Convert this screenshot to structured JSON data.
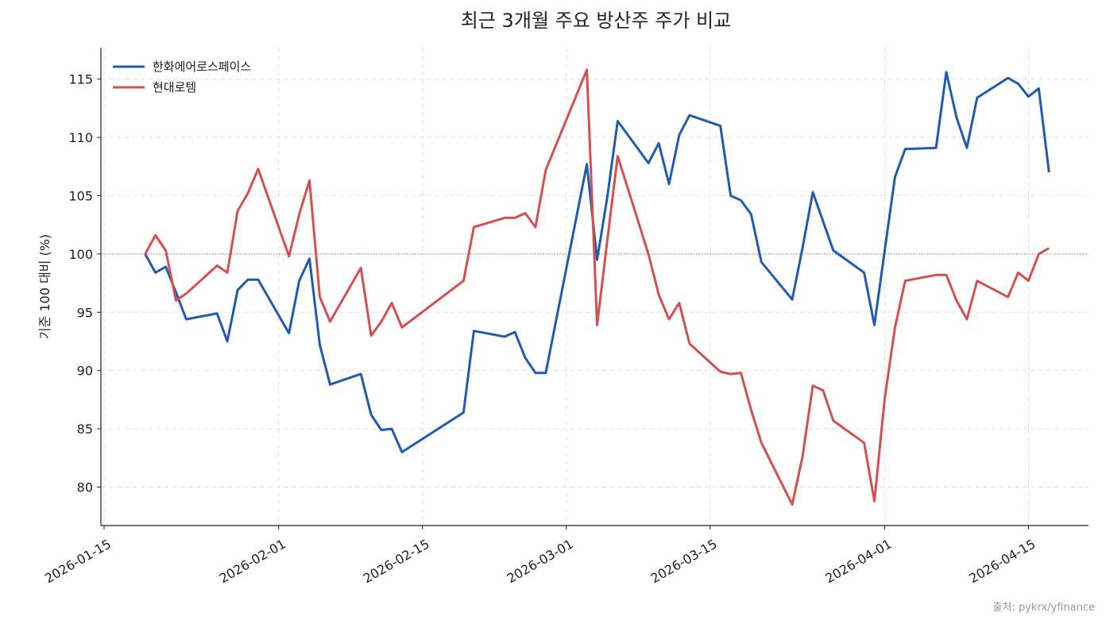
{
  "chart_data": {
    "type": "line",
    "title": "최근 3개월 주요 방산주 주가 비교",
    "y_label": "기준 100 대비 (%)",
    "source": "출처: pykrx/yfinance",
    "x": [
      "2026-01-19",
      "2026-01-20",
      "2026-01-21",
      "2026-01-22",
      "2026-01-23",
      "2026-01-26",
      "2026-01-27",
      "2026-01-28",
      "2026-01-29",
      "2026-01-30",
      "2026-02-02",
      "2026-02-03",
      "2026-02-04",
      "2026-02-05",
      "2026-02-06",
      "2026-02-09",
      "2026-02-10",
      "2026-02-11",
      "2026-02-12",
      "2026-02-13",
      "2026-02-19",
      "2026-02-20",
      "2026-02-23",
      "2026-02-24",
      "2026-02-25",
      "2026-02-26",
      "2026-02-27",
      "2026-03-03",
      "2026-03-04",
      "2026-03-05",
      "2026-03-06",
      "2026-03-09",
      "2026-03-10",
      "2026-03-11",
      "2026-03-12",
      "2026-03-13",
      "2026-03-16",
      "2026-03-17",
      "2026-03-18",
      "2026-03-19",
      "2026-03-20",
      "2026-03-23",
      "2026-03-24",
      "2026-03-25",
      "2026-03-26",
      "2026-03-27",
      "2026-03-30",
      "2026-03-31",
      "2026-04-01",
      "2026-04-02",
      "2026-04-03",
      "2026-04-06",
      "2026-04-07",
      "2026-04-08",
      "2026-04-09",
      "2026-04-10",
      "2026-04-13",
      "2026-04-14",
      "2026-04-15",
      "2026-04-16",
      "2026-04-17"
    ],
    "series": [
      {
        "name": "한화에어로스페이스",
        "color": "#1f5bb0",
        "values": [
          100,
          98.4,
          98.9,
          96.7,
          94.4,
          94.9,
          92.5,
          96.9,
          97.8,
          97.8,
          93.2,
          97.7,
          99.6,
          92.2,
          88.8,
          89.7,
          86.2,
          84.9,
          85.0,
          83.0,
          86.4,
          93.4,
          92.9,
          93.3,
          91.1,
          89.8,
          89.8,
          107.7,
          99.5,
          104.9,
          111.4,
          107.8,
          109.5,
          106.0,
          110.2,
          111.9,
          111.0,
          105.0,
          104.6,
          103.4,
          99.3,
          96.1,
          100.5,
          105.3,
          102.8,
          100.3,
          98.4,
          93.9,
          100.3,
          106.6,
          109.0,
          109.1,
          115.6,
          111.7,
          109.1,
          113.4,
          115.1,
          114.6,
          113.5,
          114.2,
          107.0
        ]
      },
      {
        "name": "현대로템",
        "color": "#d45050",
        "values": [
          100,
          101.6,
          100.3,
          96.0,
          96.6,
          99.0,
          98.4,
          103.7,
          105.2,
          107.3,
          99.8,
          103.4,
          106.3,
          96.3,
          94.2,
          98.8,
          93.0,
          94.2,
          95.8,
          93.7,
          97.7,
          102.3,
          103.1,
          103.1,
          103.5,
          102.3,
          107.2,
          115.8,
          93.9,
          101.2,
          108.4,
          100.0,
          96.5,
          94.4,
          95.8,
          92.3,
          89.9,
          89.7,
          89.8,
          86.6,
          83.8,
          78.5,
          82.6,
          88.7,
          88.3,
          85.7,
          83.8,
          78.8,
          87.6,
          93.7,
          97.7,
          98.2,
          98.2,
          96.0,
          94.4,
          97.7,
          96.3,
          98.4,
          97.7,
          100.0,
          100.5
        ]
      }
    ],
    "xlim": [
      "2026-01-15",
      "2026-04-21"
    ],
    "xticks": [
      "2026-01-15",
      "2026-02-01",
      "2026-02-15",
      "2026-03-01",
      "2026-03-15",
      "2026-04-01",
      "2026-04-15"
    ],
    "ylim": [
      76.7,
      117.7
    ],
    "yticks": [
      80,
      85,
      90,
      95,
      100,
      105,
      110,
      115
    ],
    "hline": 100,
    "grid": true,
    "legend": "upper-left"
  }
}
